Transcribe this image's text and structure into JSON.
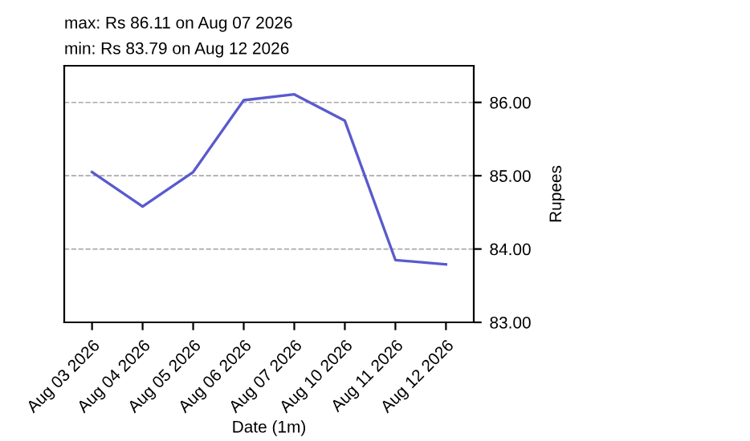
{
  "chart_data": {
    "type": "line",
    "xlabel": "Date (1m)",
    "ylabel": "Rupees",
    "annotations": [
      "max: Rs 86.11 on Aug 07 2026",
      "min: Rs 83.79 on Aug 12 2026"
    ],
    "categories": [
      "Aug 03 2026",
      "Aug 04 2026",
      "Aug 05 2026",
      "Aug 06 2026",
      "Aug 07 2026",
      "Aug 10 2026",
      "Aug 11 2026",
      "Aug 12 2026"
    ],
    "series": [
      {
        "color": "#5a5acd",
        "values": [
          85.05,
          84.58,
          85.05,
          86.03,
          86.11,
          85.75,
          83.85,
          83.79
        ]
      }
    ],
    "ylim": [
      83,
      86.5
    ],
    "yticks": [
      {
        "value": 83,
        "label": "83.00"
      },
      {
        "value": 84,
        "label": "84.00"
      },
      {
        "value": 85,
        "label": "85.00"
      },
      {
        "value": 86,
        "label": "86.00"
      }
    ],
    "grid": "y",
    "marker": "none",
    "line_style": "solid"
  }
}
